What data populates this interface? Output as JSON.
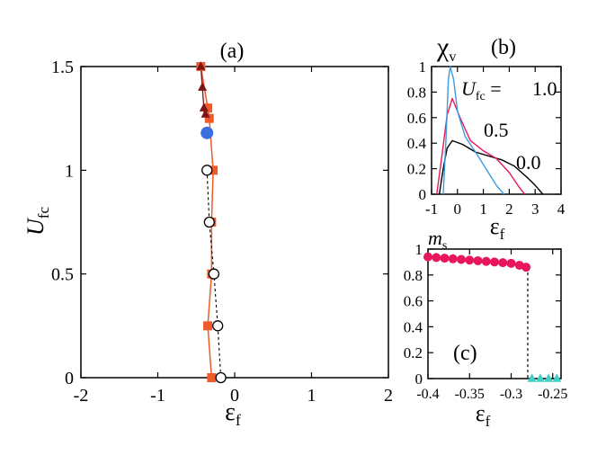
{
  "chart_data": [
    {
      "panel": "(a)",
      "type": "scatter",
      "xlim": [
        -2,
        2
      ],
      "ylim": [
        0,
        1.5
      ],
      "x_ticks": [
        "-2",
        "-1",
        "0",
        "1",
        "2"
      ],
      "y_ticks": [
        "0",
        "0.5",
        "1",
        "1.5"
      ],
      "xlabel_symbol": "ε",
      "xlabel_sub": "f",
      "ylabel_symbol": "U",
      "ylabel_sub": "fc",
      "series": [
        {
          "marker": "square",
          "color": "#f05a28",
          "points": [
            [
              -0.3,
              0.0
            ],
            [
              -0.35,
              0.25
            ],
            [
              -0.3,
              0.5
            ],
            [
              -0.3,
              0.75
            ],
            [
              -0.28,
              1.0
            ],
            [
              -0.33,
              1.25
            ],
            [
              -0.35,
              1.3
            ],
            [
              -0.44,
              1.5
            ]
          ]
        },
        {
          "marker": "triangle",
          "color": "#7a1419",
          "points": [
            [
              -0.44,
              1.5
            ],
            [
              -0.42,
              1.4
            ],
            [
              -0.4,
              1.3
            ],
            [
              -0.38,
              1.27
            ]
          ]
        },
        {
          "marker": "circle",
          "color": "#3b6fe0",
          "points": [
            [
              -0.36,
              1.18
            ]
          ]
        },
        {
          "marker": "open-circle",
          "color": "#000000",
          "points": [
            [
              -0.36,
              1.0
            ],
            [
              -0.33,
              0.75
            ],
            [
              -0.27,
              0.5
            ],
            [
              -0.22,
              0.25
            ],
            [
              -0.18,
              0.0
            ]
          ]
        }
      ]
    },
    {
      "panel": "(b)",
      "type": "line",
      "title_symbol": "χ",
      "title_sub": "v",
      "xlim": [
        -1,
        4
      ],
      "ylim": [
        0,
        1
      ],
      "x_ticks": [
        "-1",
        "0",
        "1",
        "2",
        "3",
        "4"
      ],
      "y_ticks": [
        "0",
        "0.2",
        "0.4",
        "0.6",
        "0.8",
        "1"
      ],
      "xlabel_symbol": "ε",
      "xlabel_sub": "f",
      "legend_prefix_symbol": "U",
      "legend_prefix_sub": "fc",
      "legend_prefix_eq": " = ",
      "series": [
        {
          "name": "1.0",
          "color": "#3b9be0",
          "points": [
            [
              -0.55,
              0
            ],
            [
              -0.45,
              0.4
            ],
            [
              -0.35,
              0.9
            ],
            [
              -0.28,
              1.0
            ],
            [
              -0.15,
              0.9
            ],
            [
              0.0,
              0.65
            ],
            [
              0.3,
              0.45
            ],
            [
              0.7,
              0.33
            ],
            [
              1.1,
              0.2
            ],
            [
              1.5,
              0.07
            ],
            [
              1.8,
              0
            ]
          ]
        },
        {
          "name": "0.5",
          "color": "#e8175d",
          "points": [
            [
              -0.8,
              0
            ],
            [
              -0.6,
              0.3
            ],
            [
              -0.4,
              0.62
            ],
            [
              -0.2,
              0.75
            ],
            [
              0.1,
              0.6
            ],
            [
              0.5,
              0.42
            ],
            [
              1.0,
              0.34
            ],
            [
              1.5,
              0.28
            ],
            [
              2.0,
              0.17
            ],
            [
              2.4,
              0.05
            ],
            [
              2.6,
              0
            ]
          ]
        },
        {
          "name": "0.0",
          "color": "#000000",
          "points": [
            [
              -0.7,
              0
            ],
            [
              -0.55,
              0.2
            ],
            [
              -0.4,
              0.36
            ],
            [
              -0.2,
              0.42
            ],
            [
              0.2,
              0.39
            ],
            [
              0.7,
              0.33
            ],
            [
              1.2,
              0.3
            ],
            [
              1.7,
              0.27
            ],
            [
              2.2,
              0.22
            ],
            [
              2.7,
              0.13
            ],
            [
              3.0,
              0.07
            ],
            [
              3.3,
              0
            ]
          ]
        }
      ]
    },
    {
      "panel": "(c)",
      "type": "scatter",
      "title_symbol": "m",
      "title_sub": "s",
      "xlim": [
        -0.4,
        -0.24
      ],
      "ylim": [
        0,
        1
      ],
      "x_ticks": [
        "-0.4",
        "-0.35",
        "-0.3",
        "-0.25"
      ],
      "y_ticks": [
        "0",
        "0.2",
        "0.4",
        "0.6",
        "0.8",
        "1"
      ],
      "xlabel_symbol": "ε",
      "xlabel_sub": "f",
      "transition_x": -0.28,
      "series": [
        {
          "marker": "circle",
          "color": "#e8175d",
          "points": [
            [
              -0.4,
              0.94
            ],
            [
              -0.39,
              0.935
            ],
            [
              -0.38,
              0.93
            ],
            [
              -0.37,
              0.925
            ],
            [
              -0.36,
              0.92
            ],
            [
              -0.35,
              0.915
            ],
            [
              -0.34,
              0.91
            ],
            [
              -0.33,
              0.905
            ],
            [
              -0.32,
              0.9
            ],
            [
              -0.31,
              0.895
            ],
            [
              -0.3,
              0.89
            ],
            [
              -0.29,
              0.875
            ],
            [
              -0.282,
              0.86
            ]
          ]
        },
        {
          "marker": "triangle",
          "color": "#40d0c8",
          "points": [
            [
              -0.275,
              0
            ],
            [
              -0.265,
              0
            ],
            [
              -0.255,
              0
            ],
            [
              -0.245,
              0
            ]
          ]
        }
      ]
    }
  ]
}
